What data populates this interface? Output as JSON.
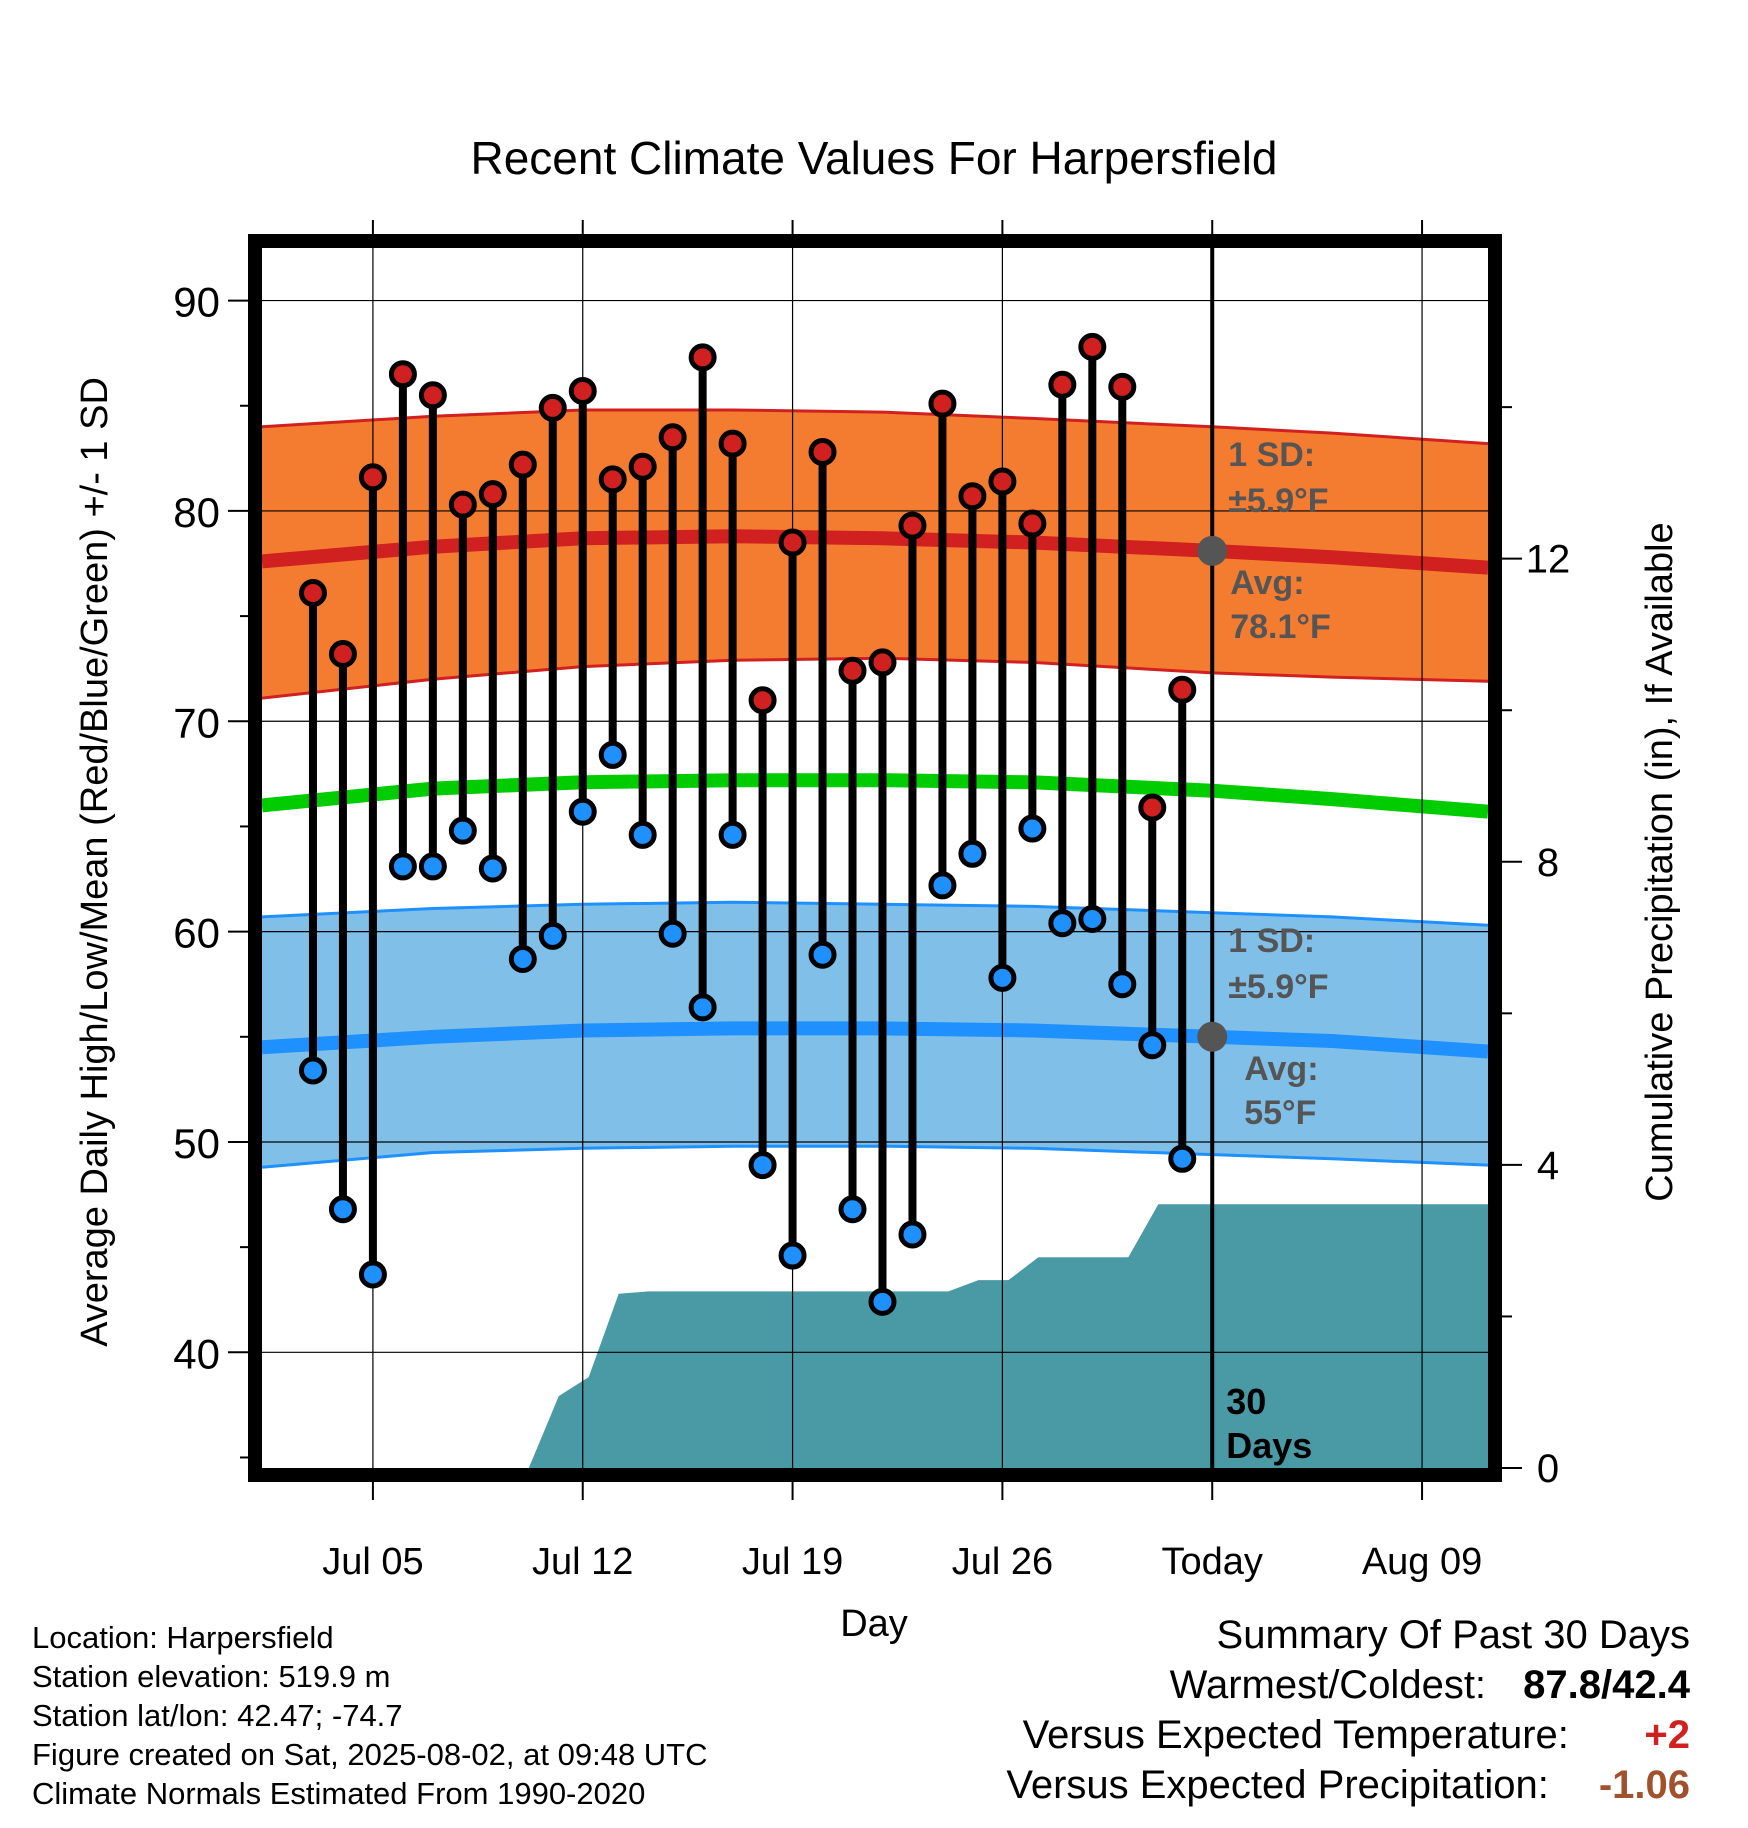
{
  "chart_data": {
    "type": "line",
    "title": "Recent Climate Values For Harpersfield",
    "xlabel": "Day",
    "ylabel": "Average Daily High/Low/Mean (Red/Blue/Green) +/- 1 SD",
    "y2label": "Cumulative Precipitation (in), If Available",
    "x_tick_labels": [
      "Jul 05",
      "Jul 12",
      "Jul 19",
      "Jul 26",
      "Today",
      "Aug 09"
    ],
    "x_tick_days": [
      5,
      12,
      19,
      26,
      33,
      40
    ],
    "xlim": [
      1.3,
      42.2
    ],
    "ylim": [
      34.5,
      92.5
    ],
    "y_ticks": [
      40,
      50,
      60,
      70,
      80,
      90
    ],
    "y2lim": [
      0,
      16.1
    ],
    "y2_ticks": [
      0,
      4,
      8,
      12
    ],
    "grid": true,
    "today_day": 33,
    "today_window_label": "30 Days",
    "normals": {
      "days": [
        1.3,
        7,
        12,
        17,
        22,
        27,
        33,
        37,
        42.2
      ],
      "high_avg": [
        77.6,
        78.3,
        78.7,
        78.8,
        78.7,
        78.5,
        78.1,
        77.8,
        77.3
      ],
      "high_upper": [
        84.0,
        84.5,
        84.8,
        84.8,
        84.7,
        84.4,
        84.0,
        83.7,
        83.2
      ],
      "high_lower": [
        71.1,
        72.0,
        72.6,
        72.9,
        73.0,
        72.8,
        72.3,
        72.1,
        71.9
      ],
      "mean_avg": [
        66.0,
        66.8,
        67.1,
        67.2,
        67.2,
        67.1,
        66.7,
        66.3,
        65.7
      ],
      "low_avg": [
        54.5,
        55.0,
        55.3,
        55.4,
        55.4,
        55.3,
        55.0,
        54.8,
        54.3
      ],
      "low_upper": [
        60.7,
        61.1,
        61.3,
        61.4,
        61.3,
        61.2,
        60.9,
        60.7,
        60.3
      ],
      "low_lower": [
        48.8,
        49.5,
        49.7,
        49.8,
        49.8,
        49.7,
        49.4,
        49.2,
        48.9
      ]
    },
    "high_annotation": {
      "sd_label": "1 SD:",
      "sd_value": "±5.9°F",
      "avg_label": "Avg:",
      "avg_value": "78.1°F",
      "avg": 78.1
    },
    "low_annotation": {
      "sd_label": "1 SD:",
      "sd_value": "±5.9°F",
      "avg_label": "Avg:",
      "avg_value": "55°F",
      "avg": 55.0
    },
    "series": [
      {
        "name": "High",
        "color": "#d02020",
        "x": [
          3,
          4,
          5,
          6,
          7,
          8,
          9,
          10,
          11,
          12,
          13,
          14,
          15,
          16,
          17,
          18,
          19,
          20,
          21,
          22,
          23,
          24,
          25,
          26,
          27,
          28,
          29,
          30,
          31,
          32
        ],
        "values": [
          76.1,
          73.2,
          81.6,
          86.5,
          85.5,
          80.3,
          80.8,
          82.2,
          84.9,
          85.7,
          81.5,
          82.1,
          83.5,
          87.3,
          83.2,
          71.0,
          78.5,
          82.8,
          72.4,
          72.8,
          79.3,
          85.1,
          80.7,
          81.4,
          79.4,
          86.0,
          87.8,
          85.9,
          65.9,
          71.5
        ]
      },
      {
        "name": "Low",
        "color": "#1e90ff",
        "x": [
          3,
          4,
          5,
          6,
          7,
          8,
          9,
          10,
          11,
          12,
          13,
          14,
          15,
          16,
          17,
          18,
          19,
          20,
          21,
          22,
          23,
          24,
          25,
          26,
          27,
          28,
          29,
          30,
          31,
          32
        ],
        "values": [
          53.4,
          46.8,
          43.7,
          63.1,
          63.1,
          64.8,
          63.0,
          58.7,
          59.8,
          65.7,
          68.4,
          64.6,
          59.9,
          56.4,
          64.6,
          48.9,
          44.6,
          58.9,
          46.8,
          42.4,
          45.6,
          62.2,
          63.7,
          57.8,
          64.9,
          60.4,
          60.6,
          57.5,
          54.6,
          49.2
        ]
      },
      {
        "name": "Cumulative Precipitation",
        "color": "#4a9aa5",
        "x": [
          10.2,
          11.2,
          12.2,
          13.2,
          14.2,
          24.2,
          25.2,
          26.2,
          27.2,
          28.2,
          30.2,
          31.2,
          42.2
        ],
        "values": [
          0,
          0.95,
          1.2,
          2.3,
          2.33,
          2.33,
          2.48,
          2.48,
          2.78,
          2.78,
          2.78,
          3.48,
          3.48
        ]
      }
    ]
  },
  "summary": {
    "title": "Summary Of Past 30 Days",
    "warm_cold_label": "Warmest/Coldest:",
    "warm_cold_value": "87.8/42.4",
    "temp_label": "Versus Expected Temperature:",
    "temp_value": "+2",
    "temp_color": "#d02020",
    "precip_label": "Versus Expected Precipitation:",
    "precip_value": "-1.06",
    "precip_color": "#a0522d"
  },
  "station": {
    "location": "Location: Harpersfield",
    "elevation": "Station elevation: 519.9 m",
    "latlon": "Station lat/lon: 42.47; -74.7",
    "created": "Figure created on Sat, 2025-08-02, at 09:48 UTC",
    "normals": "Climate Normals Estimated From 1990-2020"
  }
}
